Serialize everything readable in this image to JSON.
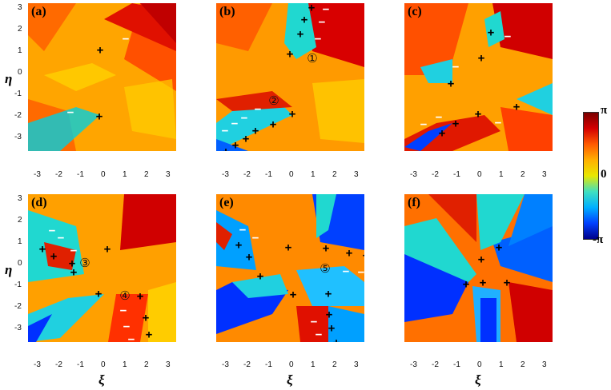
{
  "panels": [
    {
      "label": "(a)"
    },
    {
      "label": "(b)"
    },
    {
      "label": "(c)"
    },
    {
      "label": "(d)"
    },
    {
      "label": "(e)"
    },
    {
      "label": "(f)"
    }
  ],
  "axes": {
    "eta_label": "η",
    "xi_label": "ξ",
    "y_ticks": [
      "3",
      "2",
      "1",
      "0",
      "-1",
      "-2",
      "-3"
    ],
    "x_ticks": [
      "-3",
      "-2",
      "-1",
      "0",
      "1",
      "2",
      "3"
    ]
  },
  "vortex_symbols": {
    "plus": "+",
    "minus": "−"
  },
  "circled_numbers": [
    "①",
    "②",
    "③",
    "④",
    "⑤"
  ],
  "colorbar": {
    "top": "π",
    "middle": "0",
    "bottom": "-π"
  }
}
